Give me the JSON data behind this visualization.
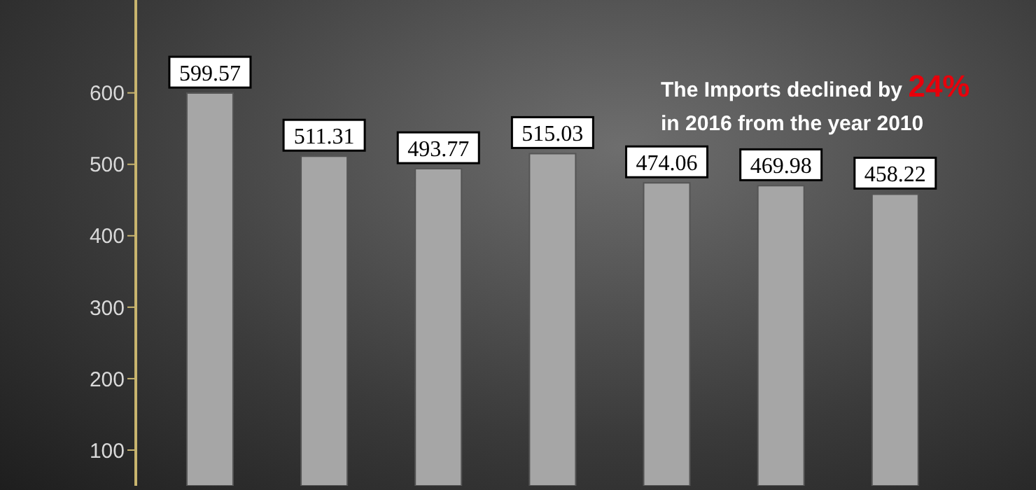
{
  "chart_data": {
    "type": "bar",
    "categories": [
      null,
      null,
      null,
      null,
      null,
      null,
      null
    ],
    "values": [
      599.57,
      511.31,
      493.77,
      515.03,
      474.06,
      469.98,
      458.22
    ],
    "color": "#a6a6a6",
    "ylim": [
      50,
      730
    ],
    "yticks": [
      100,
      200,
      300,
      400,
      500,
      600
    ],
    "grid": false,
    "data_labels": true,
    "tick_labels": "y",
    "annotations": [
      "The Imports declined by",
      "24%",
      "in 2016 from the year 2010"
    ]
  }
}
